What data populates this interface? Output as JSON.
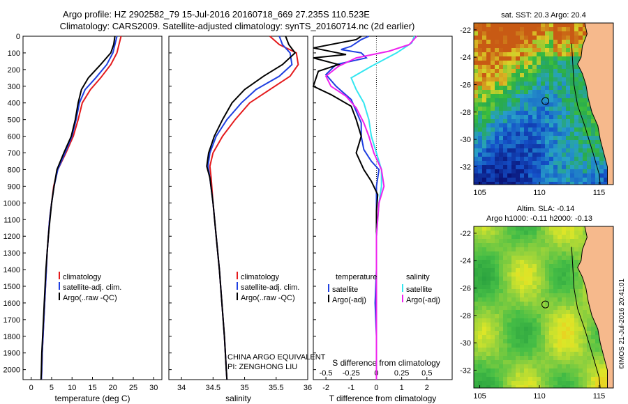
{
  "header": {
    "line1": "Argo profile: HZ 2902582_79 15-Jul-2016 20160718_669 27.235S 110.523E",
    "line2": "Climatology: CARS2009. Satellite-adjusted climatology: synTS_20160714.nc (2d earlier)"
  },
  "colors": {
    "climatology": "#e41a1c",
    "satellite": "#1f3fe0",
    "argo": "#000000",
    "sat_salinity": "#33e6f0",
    "argo_salinity": "#ee22ee",
    "land": "#f6b98c"
  },
  "depth_axis": {
    "ylim": [
      0,
      2060
    ],
    "ticks": [
      0,
      100,
      200,
      300,
      400,
      500,
      600,
      700,
      800,
      900,
      1000,
      1100,
      1200,
      1300,
      1400,
      1500,
      1600,
      1700,
      1800,
      1900,
      2000
    ]
  },
  "chart_data": [
    {
      "type": "line",
      "id": "temperature",
      "xlabel": "temperature (deg C)",
      "xlim": [
        -2,
        32
      ],
      "xticks": [
        0,
        5,
        10,
        15,
        20,
        25,
        30
      ],
      "legend": [
        "climatology",
        "satellite-adj. clim.",
        "Argo(..raw -QC)"
      ],
      "series": [
        {
          "key": "climatology",
          "points": [
            [
              22,
              0
            ],
            [
              21.5,
              50
            ],
            [
              21,
              100
            ],
            [
              19.5,
              170
            ],
            [
              17,
              250
            ],
            [
              14.5,
              320
            ],
            [
              12.5,
              400
            ],
            [
              11.5,
              500
            ],
            [
              10.3,
              600
            ],
            [
              8.5,
              700
            ],
            [
              6.5,
              800
            ],
            [
              5.5,
              900
            ],
            [
              5,
              1000
            ],
            [
              4.5,
              1100
            ],
            [
              4.2,
              1200
            ],
            [
              3.9,
              1300
            ],
            [
              3.7,
              1400
            ],
            [
              3.5,
              1500
            ],
            [
              3.3,
              1600
            ],
            [
              3.1,
              1700
            ],
            [
              2.9,
              1800
            ],
            [
              2.7,
              1900
            ],
            [
              2.6,
              2000
            ],
            [
              2.5,
              2060
            ]
          ]
        },
        {
          "key": "satellite",
          "points": [
            [
              21,
              0
            ],
            [
              20.5,
              50
            ],
            [
              20,
              100
            ],
            [
              18.5,
              170
            ],
            [
              15.8,
              250
            ],
            [
              13.2,
              320
            ],
            [
              11.8,
              400
            ],
            [
              11,
              500
            ],
            [
              10,
              600
            ],
            [
              8.3,
              700
            ],
            [
              6.5,
              800
            ],
            [
              5.6,
              900
            ],
            [
              5,
              1000
            ],
            [
              4.5,
              1100
            ],
            [
              4.2,
              1200
            ],
            [
              3.9,
              1300
            ],
            [
              3.7,
              1400
            ],
            [
              3.5,
              1500
            ],
            [
              3.3,
              1600
            ],
            [
              3.1,
              1700
            ],
            [
              2.9,
              1800
            ],
            [
              2.7,
              1900
            ],
            [
              2.6,
              2000
            ],
            [
              2.5,
              2060
            ]
          ]
        },
        {
          "key": "argo",
          "points": [
            [
              20.5,
              0
            ],
            [
              20.2,
              50
            ],
            [
              19.5,
              100
            ],
            [
              17,
              170
            ],
            [
              14,
              250
            ],
            [
              12.3,
              320
            ],
            [
              11.5,
              400
            ],
            [
              10.8,
              500
            ],
            [
              9.8,
              600
            ],
            [
              8,
              700
            ],
            [
              6.3,
              800
            ],
            [
              5.6,
              900
            ],
            [
              5,
              1000
            ],
            [
              4.6,
              1100
            ],
            [
              4.2,
              1200
            ],
            [
              3.9,
              1300
            ],
            [
              3.6,
              1400
            ],
            [
              3.4,
              1500
            ],
            [
              3.2,
              1600
            ],
            [
              3,
              1700
            ],
            [
              2.8,
              1800
            ],
            [
              2.6,
              1900
            ],
            [
              2.5,
              2000
            ],
            [
              2.4,
              2060
            ]
          ]
        }
      ]
    },
    {
      "type": "line",
      "id": "salinity",
      "xlabel": "salinity",
      "xlim": [
        33.8,
        36.0
      ],
      "xticks": [
        34,
        34.5,
        35,
        35.5,
        36
      ],
      "legend": [
        "climatology",
        "satellite-adj. clim.",
        "Argo(..raw -QC)"
      ],
      "series": [
        {
          "key": "climatology",
          "points": [
            [
              35.4,
              0
            ],
            [
              35.55,
              50
            ],
            [
              35.82,
              100
            ],
            [
              35.85,
              170
            ],
            [
              35.72,
              240
            ],
            [
              35.4,
              320
            ],
            [
              35.08,
              400
            ],
            [
              34.85,
              500
            ],
            [
              34.65,
              600
            ],
            [
              34.5,
              700
            ],
            [
              34.45,
              780
            ],
            [
              34.47,
              850
            ],
            [
              34.5,
              1000
            ],
            [
              34.55,
              1200
            ],
            [
              34.6,
              1400
            ],
            [
              34.64,
              1600
            ],
            [
              34.68,
              1800
            ],
            [
              34.71,
              2000
            ],
            [
              34.72,
              2060
            ]
          ]
        },
        {
          "key": "satellite",
          "points": [
            [
              35.55,
              0
            ],
            [
              35.6,
              50
            ],
            [
              35.72,
              100
            ],
            [
              35.75,
              170
            ],
            [
              35.55,
              240
            ],
            [
              35.18,
              320
            ],
            [
              34.95,
              400
            ],
            [
              34.72,
              500
            ],
            [
              34.55,
              600
            ],
            [
              34.45,
              700
            ],
            [
              34.42,
              780
            ],
            [
              34.45,
              850
            ],
            [
              34.5,
              1000
            ],
            [
              34.55,
              1200
            ],
            [
              34.6,
              1400
            ],
            [
              34.64,
              1600
            ],
            [
              34.68,
              1800
            ],
            [
              34.71,
              2000
            ],
            [
              34.72,
              2060
            ]
          ]
        },
        {
          "key": "argo",
          "points": [
            [
              35.65,
              0
            ],
            [
              35.7,
              50
            ],
            [
              35.8,
              100
            ],
            [
              35.6,
              170
            ],
            [
              35.3,
              240
            ],
            [
              35.0,
              320
            ],
            [
              34.8,
              400
            ],
            [
              34.65,
              500
            ],
            [
              34.52,
              600
            ],
            [
              34.43,
              700
            ],
            [
              34.4,
              780
            ],
            [
              34.45,
              850
            ],
            [
              34.5,
              1000
            ],
            [
              34.55,
              1200
            ],
            [
              34.6,
              1400
            ],
            [
              34.64,
              1600
            ],
            [
              34.68,
              1800
            ],
            [
              34.71,
              2000
            ],
            [
              34.72,
              2060
            ]
          ]
        }
      ]
    },
    {
      "type": "line",
      "id": "differences",
      "xlabel": "T difference from climatology",
      "xlabel_top": "S difference from climatology",
      "xlim": [
        -2.5,
        3.0
      ],
      "xticks": [
        -2,
        -1,
        0,
        1,
        2
      ],
      "xticks_top_labels": [
        "-0.5",
        "-0.25",
        "0",
        "0.25",
        "0.5"
      ],
      "legend_temp": {
        "title": "temperature",
        "items": [
          "satellite",
          "Argo(-adj)"
        ]
      },
      "legend_sal": {
        "title": "salinity",
        "items": [
          "satellite",
          "Argo(-adj)"
        ]
      },
      "series": [
        {
          "key": "satellite",
          "points": [
            [
              -0.3,
              0
            ],
            [
              -0.6,
              20
            ],
            [
              -1.0,
              60
            ],
            [
              -1.4,
              80
            ],
            [
              -0.6,
              100
            ],
            [
              -0.4,
              130
            ],
            [
              -1.6,
              170
            ],
            [
              -2.0,
              230
            ],
            [
              -1.6,
              300
            ],
            [
              -1.0,
              380
            ],
            [
              -0.8,
              450
            ],
            [
              -0.6,
              520
            ],
            [
              -0.6,
              600
            ],
            [
              -0.5,
              680
            ],
            [
              -0.2,
              750
            ],
            [
              0.1,
              800
            ],
            [
              0.0,
              900
            ],
            [
              0.0,
              1000
            ],
            [
              0.0,
              1200
            ],
            [
              0.0,
              1400
            ],
            [
              -0.05,
              1600
            ],
            [
              0.0,
              1800
            ],
            [
              0.0,
              2060
            ]
          ]
        },
        {
          "key": "argo",
          "points": [
            [
              -0.6,
              0
            ],
            [
              -0.8,
              20
            ],
            [
              -2.5,
              70
            ],
            [
              -1.2,
              110
            ],
            [
              -2.5,
              130
            ],
            [
              -1.5,
              170
            ],
            [
              -2.3,
              210
            ],
            [
              -2.5,
              300
            ],
            [
              -1.8,
              350
            ],
            [
              -1.0,
              420
            ],
            [
              -0.8,
              500
            ],
            [
              -0.6,
              600
            ],
            [
              -0.8,
              700
            ],
            [
              -0.5,
              800
            ],
            [
              -0.2,
              870
            ],
            [
              0.05,
              950
            ],
            [
              0.0,
              1050
            ],
            [
              0.0,
              1200
            ],
            [
              0.0,
              1400
            ],
            [
              0.0,
              1600
            ],
            [
              0.0,
              1800
            ],
            [
              0.0,
              2060
            ]
          ]
        },
        {
          "key": "sat_salinity",
          "points": [
            [
              1.5,
              0
            ],
            [
              1.4,
              40
            ],
            [
              0.8,
              100
            ],
            [
              -0.2,
              180
            ],
            [
              -1.0,
              250
            ],
            [
              -0.8,
              320
            ],
            [
              -0.5,
              400
            ],
            [
              -0.3,
              500
            ],
            [
              -0.2,
              600
            ],
            [
              0.0,
              700
            ],
            [
              0.2,
              800
            ],
            [
              0.2,
              900
            ],
            [
              0.1,
              1000
            ],
            [
              0.0,
              1200
            ],
            [
              0.0,
              1400
            ],
            [
              0.0,
              1600
            ],
            [
              0.0,
              1800
            ],
            [
              0.0,
              2060
            ]
          ]
        },
        {
          "key": "argo_salinity",
          "points": [
            [
              1.6,
              0
            ],
            [
              1.3,
              50
            ],
            [
              0.5,
              90
            ],
            [
              -0.8,
              130
            ],
            [
              -1.5,
              180
            ],
            [
              -2.0,
              240
            ],
            [
              -1.8,
              300
            ],
            [
              -1.2,
              360
            ],
            [
              -0.8,
              430
            ],
            [
              -0.5,
              520
            ],
            [
              -0.3,
              600
            ],
            [
              -0.1,
              700
            ],
            [
              0.2,
              800
            ],
            [
              0.3,
              900
            ],
            [
              0.1,
              1000
            ],
            [
              0.0,
              1200
            ],
            [
              0.0,
              1400
            ],
            [
              0.0,
              1600
            ],
            [
              0.0,
              1800
            ],
            [
              0.0,
              2060
            ]
          ]
        }
      ]
    },
    {
      "type": "heatmap",
      "id": "sst_map",
      "title": "sat. SST: 20.3  Argo: 20.4",
      "xticks": [
        105,
        110,
        115
      ],
      "yticks": [
        "-22",
        "-24",
        "-26",
        "-28",
        "-30",
        "-32"
      ],
      "lon_range": [
        104.5,
        116.2
      ],
      "lat_range": [
        -21.5,
        -33.3
      ],
      "marker": {
        "lon": 110.5,
        "lat": -27.2
      }
    },
    {
      "type": "heatmap",
      "id": "sla_map",
      "title": "Altim. SLA: -0.14",
      "subtitle": "Argo h1000: -0.11 h2000: -0.13",
      "xticks": [
        105,
        110,
        115
      ],
      "yticks": [
        "-22",
        "-24",
        "-26",
        "-28",
        "-30",
        "-32"
      ],
      "lon_range": [
        104.5,
        116.2
      ],
      "lat_range": [
        -21.5,
        -33.3
      ],
      "marker": {
        "lon": 110.5,
        "lat": -27.2
      }
    }
  ],
  "annotations": {
    "float_name": "CHINA ARGO EQUIVALENT",
    "pi": "PI: ZENGHONG LIU",
    "credit": "©IMOS 21-Jul-2016 20:41:01"
  }
}
